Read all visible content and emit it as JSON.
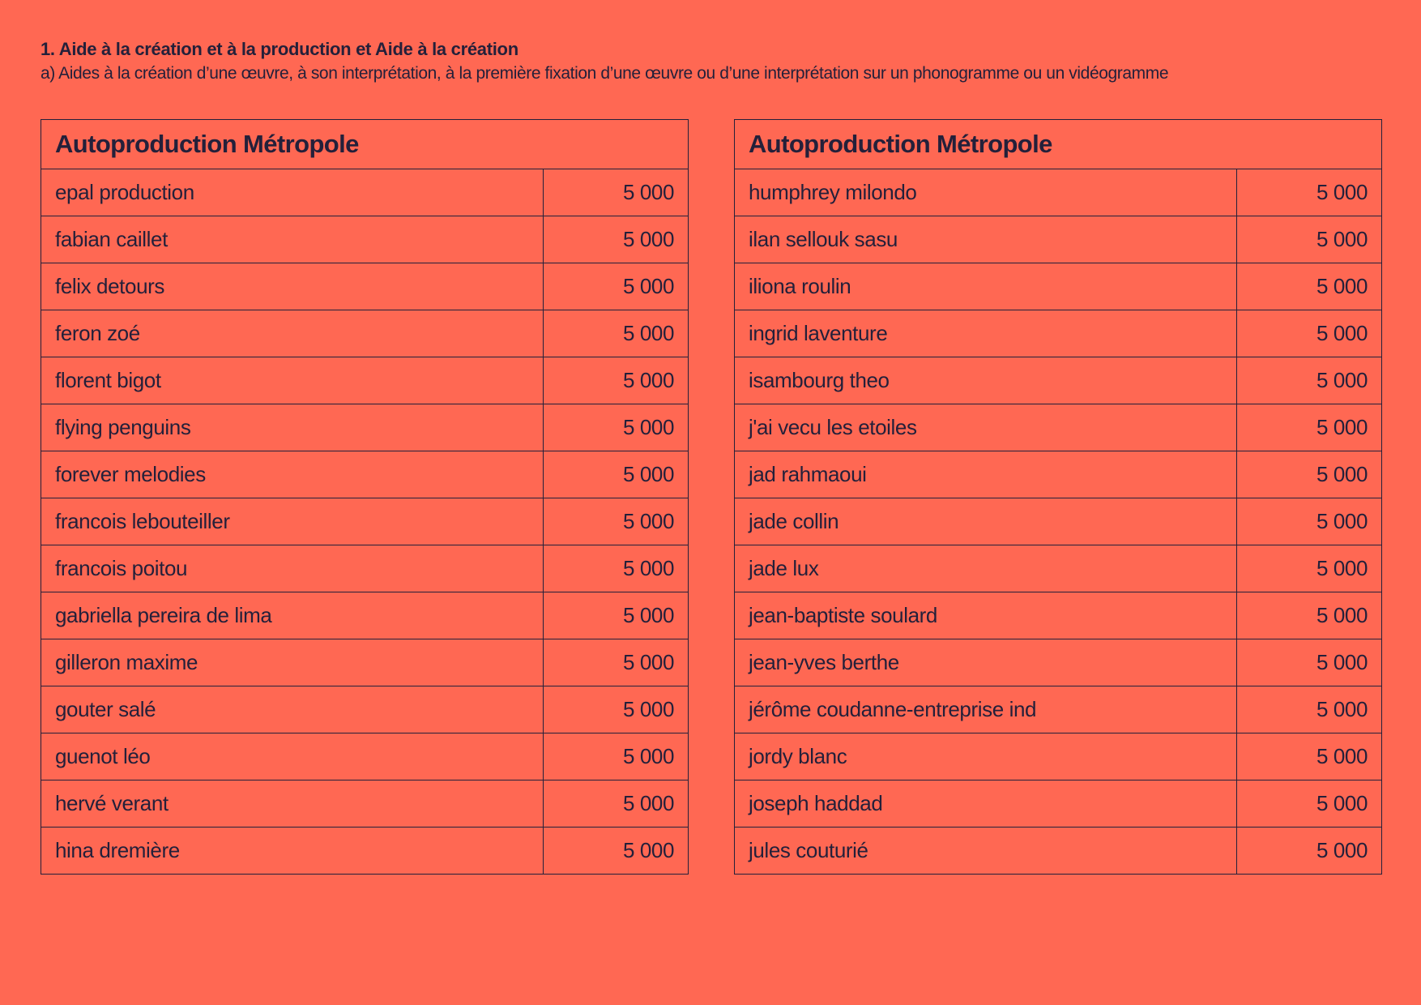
{
  "header": {
    "title": "1. Aide à la création et à la production et Aide à la création",
    "subtitle": "a) Aides à la création d’une œuvre, à son interprétation, à la première fixation d’une œuvre ou d’une interprétation sur un phonogramme ou un vidéogramme"
  },
  "tables": [
    {
      "heading": "Autoproduction Métropole",
      "rows": [
        {
          "name": "epal production",
          "amount": "5 000"
        },
        {
          "name": "fabian caillet",
          "amount": "5 000"
        },
        {
          "name": "felix detours",
          "amount": "5 000"
        },
        {
          "name": "feron zoé",
          "amount": "5 000"
        },
        {
          "name": "florent bigot",
          "amount": "5 000"
        },
        {
          "name": "flying penguins",
          "amount": "5 000"
        },
        {
          "name": "forever melodies",
          "amount": "5 000"
        },
        {
          "name": "francois lebouteiller",
          "amount": "5 000"
        },
        {
          "name": "francois poitou",
          "amount": "5 000"
        },
        {
          "name": "gabriella pereira de lima",
          "amount": "5 000"
        },
        {
          "name": "gilleron maxime",
          "amount": "5 000"
        },
        {
          "name": "gouter salé",
          "amount": "5 000"
        },
        {
          "name": "guenot léo",
          "amount": "5 000"
        },
        {
          "name": "hervé verant",
          "amount": "5 000"
        },
        {
          "name": "hina dremière",
          "amount": "5 000"
        }
      ]
    },
    {
      "heading": "Autoproduction Métropole",
      "rows": [
        {
          "name": "humphrey milondo",
          "amount": "5 000"
        },
        {
          "name": "ilan sellouk sasu",
          "amount": "5 000"
        },
        {
          "name": "iliona roulin",
          "amount": "5 000"
        },
        {
          "name": "ingrid laventure",
          "amount": "5 000"
        },
        {
          "name": "isambourg theo",
          "amount": "5 000"
        },
        {
          "name": "j'ai vecu les etoiles",
          "amount": "5 000"
        },
        {
          "name": "jad rahmaoui",
          "amount": "5 000"
        },
        {
          "name": "jade collin",
          "amount": "5 000"
        },
        {
          "name": "jade lux",
          "amount": "5 000"
        },
        {
          "name": "jean-baptiste soulard",
          "amount": "5 000"
        },
        {
          "name": "jean-yves berthe",
          "amount": "5 000"
        },
        {
          "name": "jérôme coudanne-entreprise ind",
          "amount": "5 000"
        },
        {
          "name": "jordy blanc",
          "amount": "5 000"
        },
        {
          "name": "joseph haddad",
          "amount": "5 000"
        },
        {
          "name": "jules couturié",
          "amount": "5 000"
        }
      ]
    }
  ]
}
